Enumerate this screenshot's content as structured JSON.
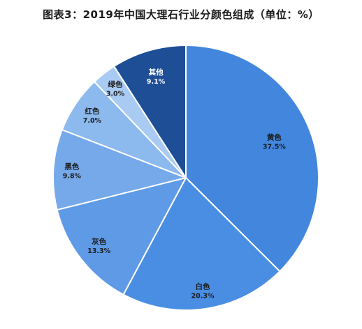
{
  "title": "图表3：2019年中国大理石行业分颜色组成（单位：%）",
  "chart_data": {
    "type": "pie",
    "title": "图表3：2019年中国大理石行业分颜色组成（单位：%）",
    "start_angle_deg": 0,
    "direction": "clockwise",
    "slices": [
      {
        "name": "黄色",
        "value": 37.5,
        "label": "37.5%",
        "color": "#4286dd",
        "label_color": "#1b1b1b"
      },
      {
        "name": "白色",
        "value": 20.3,
        "label": "20.3%",
        "color": "#4a8ee3",
        "label_color": "#1b1b1b"
      },
      {
        "name": "灰色",
        "value": 13.3,
        "label": "13.3%",
        "color": "#5f9ae6",
        "label_color": "#1b1b1b"
      },
      {
        "name": "黑色",
        "value": 9.8,
        "label": "9.8%",
        "color": "#75a9ea",
        "label_color": "#1b1b1b"
      },
      {
        "name": "红色",
        "value": 7.0,
        "label": "7.0%",
        "color": "#8cb9ee",
        "label_color": "#1b1b1b"
      },
      {
        "name": "绿色",
        "value": 3.0,
        "label": "3.0%",
        "color": "#a9cbf3",
        "label_color": "#1b1b1b"
      },
      {
        "name": "其他",
        "value": 9.1,
        "label": "9.1%",
        "color": "#1d4e96",
        "label_color": "#ffffff"
      }
    ]
  }
}
